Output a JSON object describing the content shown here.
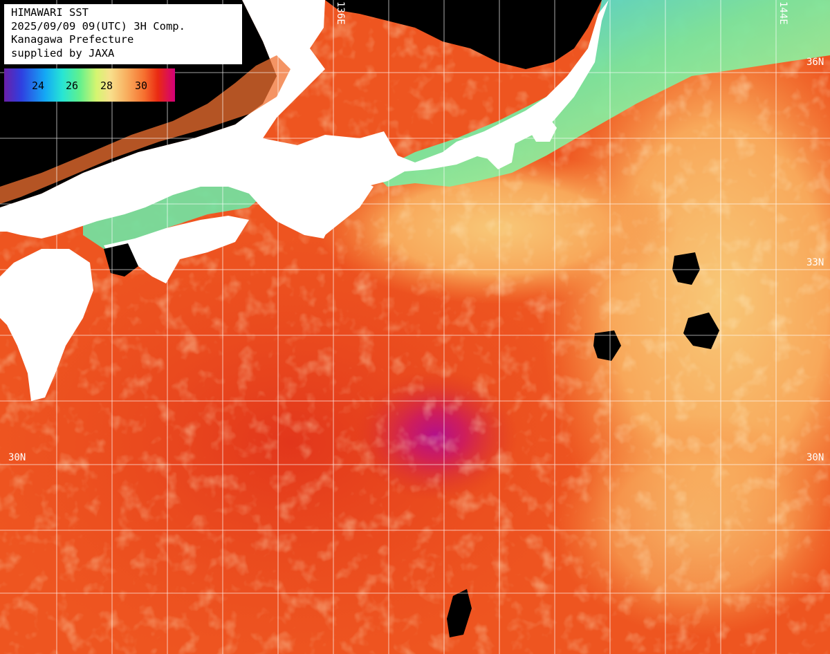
{
  "header": {
    "line1": "HIMAWARI SST",
    "line2": "2025/09/09 09(UTC) 3H Comp.",
    "line3": "Kanagawa Prefecture",
    "line4": "supplied by JAXA"
  },
  "colorbar": {
    "ticks": [
      "24",
      "26",
      "28",
      "30"
    ],
    "gradient": [
      "#6a1fa8",
      "#2f3fe0",
      "#14a8f5",
      "#27e5d4",
      "#5ff08f",
      "#d5f570",
      "#f8e08c",
      "#f8ad5e",
      "#f6702f",
      "#ea2a12",
      "#d3007a"
    ]
  },
  "grid": {
    "lon_labels": [
      "136E",
      "144E"
    ],
    "lat_labels_left": [
      "30N"
    ],
    "lat_labels_right": [
      "36N",
      "33N",
      "30N"
    ]
  },
  "colors": {
    "land": "#ffffff",
    "no_data": "#000000",
    "warm_sea": "#f2651e",
    "hot_sea": "#e0351a",
    "mild_sea": "#f7a45a",
    "cool_coast": "#7be8a0",
    "cold_coast": "#33c8f0",
    "grid": "#ffffff"
  }
}
